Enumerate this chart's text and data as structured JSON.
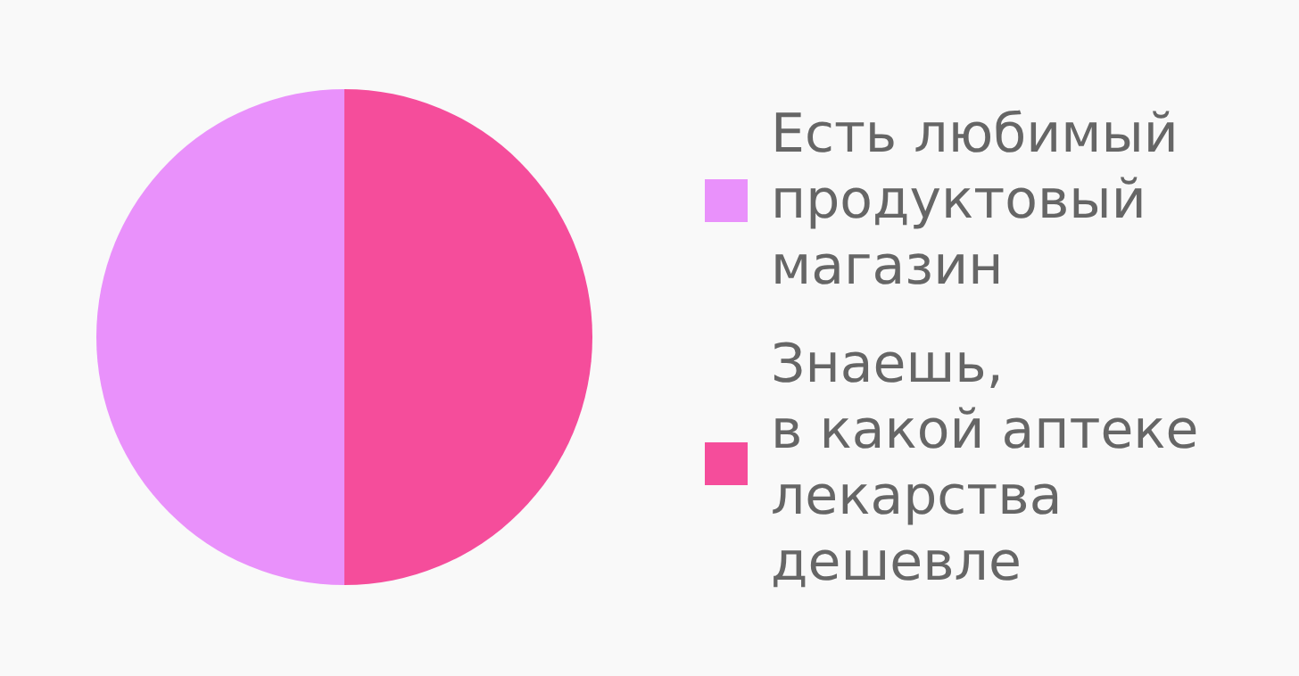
{
  "chart_data": {
    "type": "pie",
    "categories": [
      "Есть любимый\nпродуктовый\nмагазин",
      "Знаешь,\nв какой аптеке\nлекарства\nдешевле"
    ],
    "values": [
      50,
      50
    ],
    "colors": [
      "#e991fb",
      "#f54d9b"
    ],
    "legend": "right"
  }
}
